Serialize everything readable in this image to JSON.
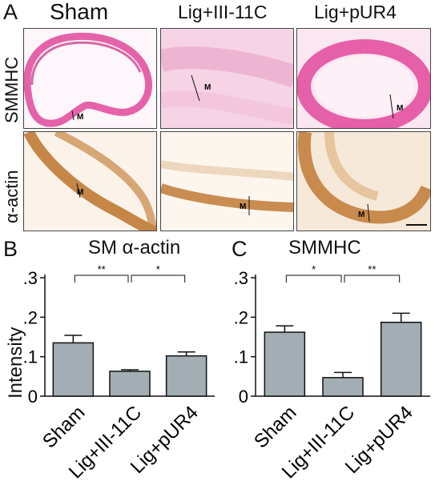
{
  "panel_a": {
    "letter": "A",
    "columns": [
      "Sham",
      "Lig+III-11C",
      "Lig+pUR4"
    ],
    "rows": [
      "SMMHC",
      "α-actin"
    ],
    "tile_labels": {
      "smmhc_sham": "M",
      "smmhc_lig3": "M",
      "smmhc_pur4": "M",
      "actin_sham": "M",
      "actin_lig3": "M",
      "actin_pur4": "M"
    },
    "colors": {
      "stain_smmhc": "#e0489b",
      "stain_actin": "#b86a1e"
    }
  },
  "chart_data": [
    {
      "panel": "B",
      "type": "bar",
      "title": "SM α-actin",
      "ylabel": "Intensity",
      "categories": [
        "Sham",
        "Lig+III-11C",
        "Lig+pUR4"
      ],
      "values": [
        0.135,
        0.063,
        0.102
      ],
      "errors": [
        0.019,
        0.004,
        0.01
      ],
      "ylim": [
        0,
        0.3
      ],
      "yticks": [
        0,
        0.1,
        0.2,
        0.3
      ],
      "ytick_labels": [
        "0",
        ".1",
        ".2",
        ".3"
      ],
      "significance": [
        {
          "from": 0,
          "to": 1,
          "label": "**"
        },
        {
          "from": 1,
          "to": 2,
          "label": "*"
        }
      ],
      "bar_color": "#a2aeb3",
      "grid": false
    },
    {
      "panel": "C",
      "type": "bar",
      "title": "SMMHC",
      "ylabel": "",
      "categories": [
        "Sham",
        "Lig+III-11C",
        "Lig+pUR4"
      ],
      "values": [
        0.162,
        0.047,
        0.187
      ],
      "errors": [
        0.016,
        0.013,
        0.023
      ],
      "ylim": [
        0,
        0.3
      ],
      "yticks": [
        0,
        0.1,
        0.2,
        0.3
      ],
      "ytick_labels": [
        "0",
        ".1",
        ".2",
        ".3"
      ],
      "significance": [
        {
          "from": 0,
          "to": 1,
          "label": "*"
        },
        {
          "from": 1,
          "to": 2,
          "label": "**"
        }
      ],
      "bar_color": "#a2aeb3",
      "grid": false
    }
  ]
}
